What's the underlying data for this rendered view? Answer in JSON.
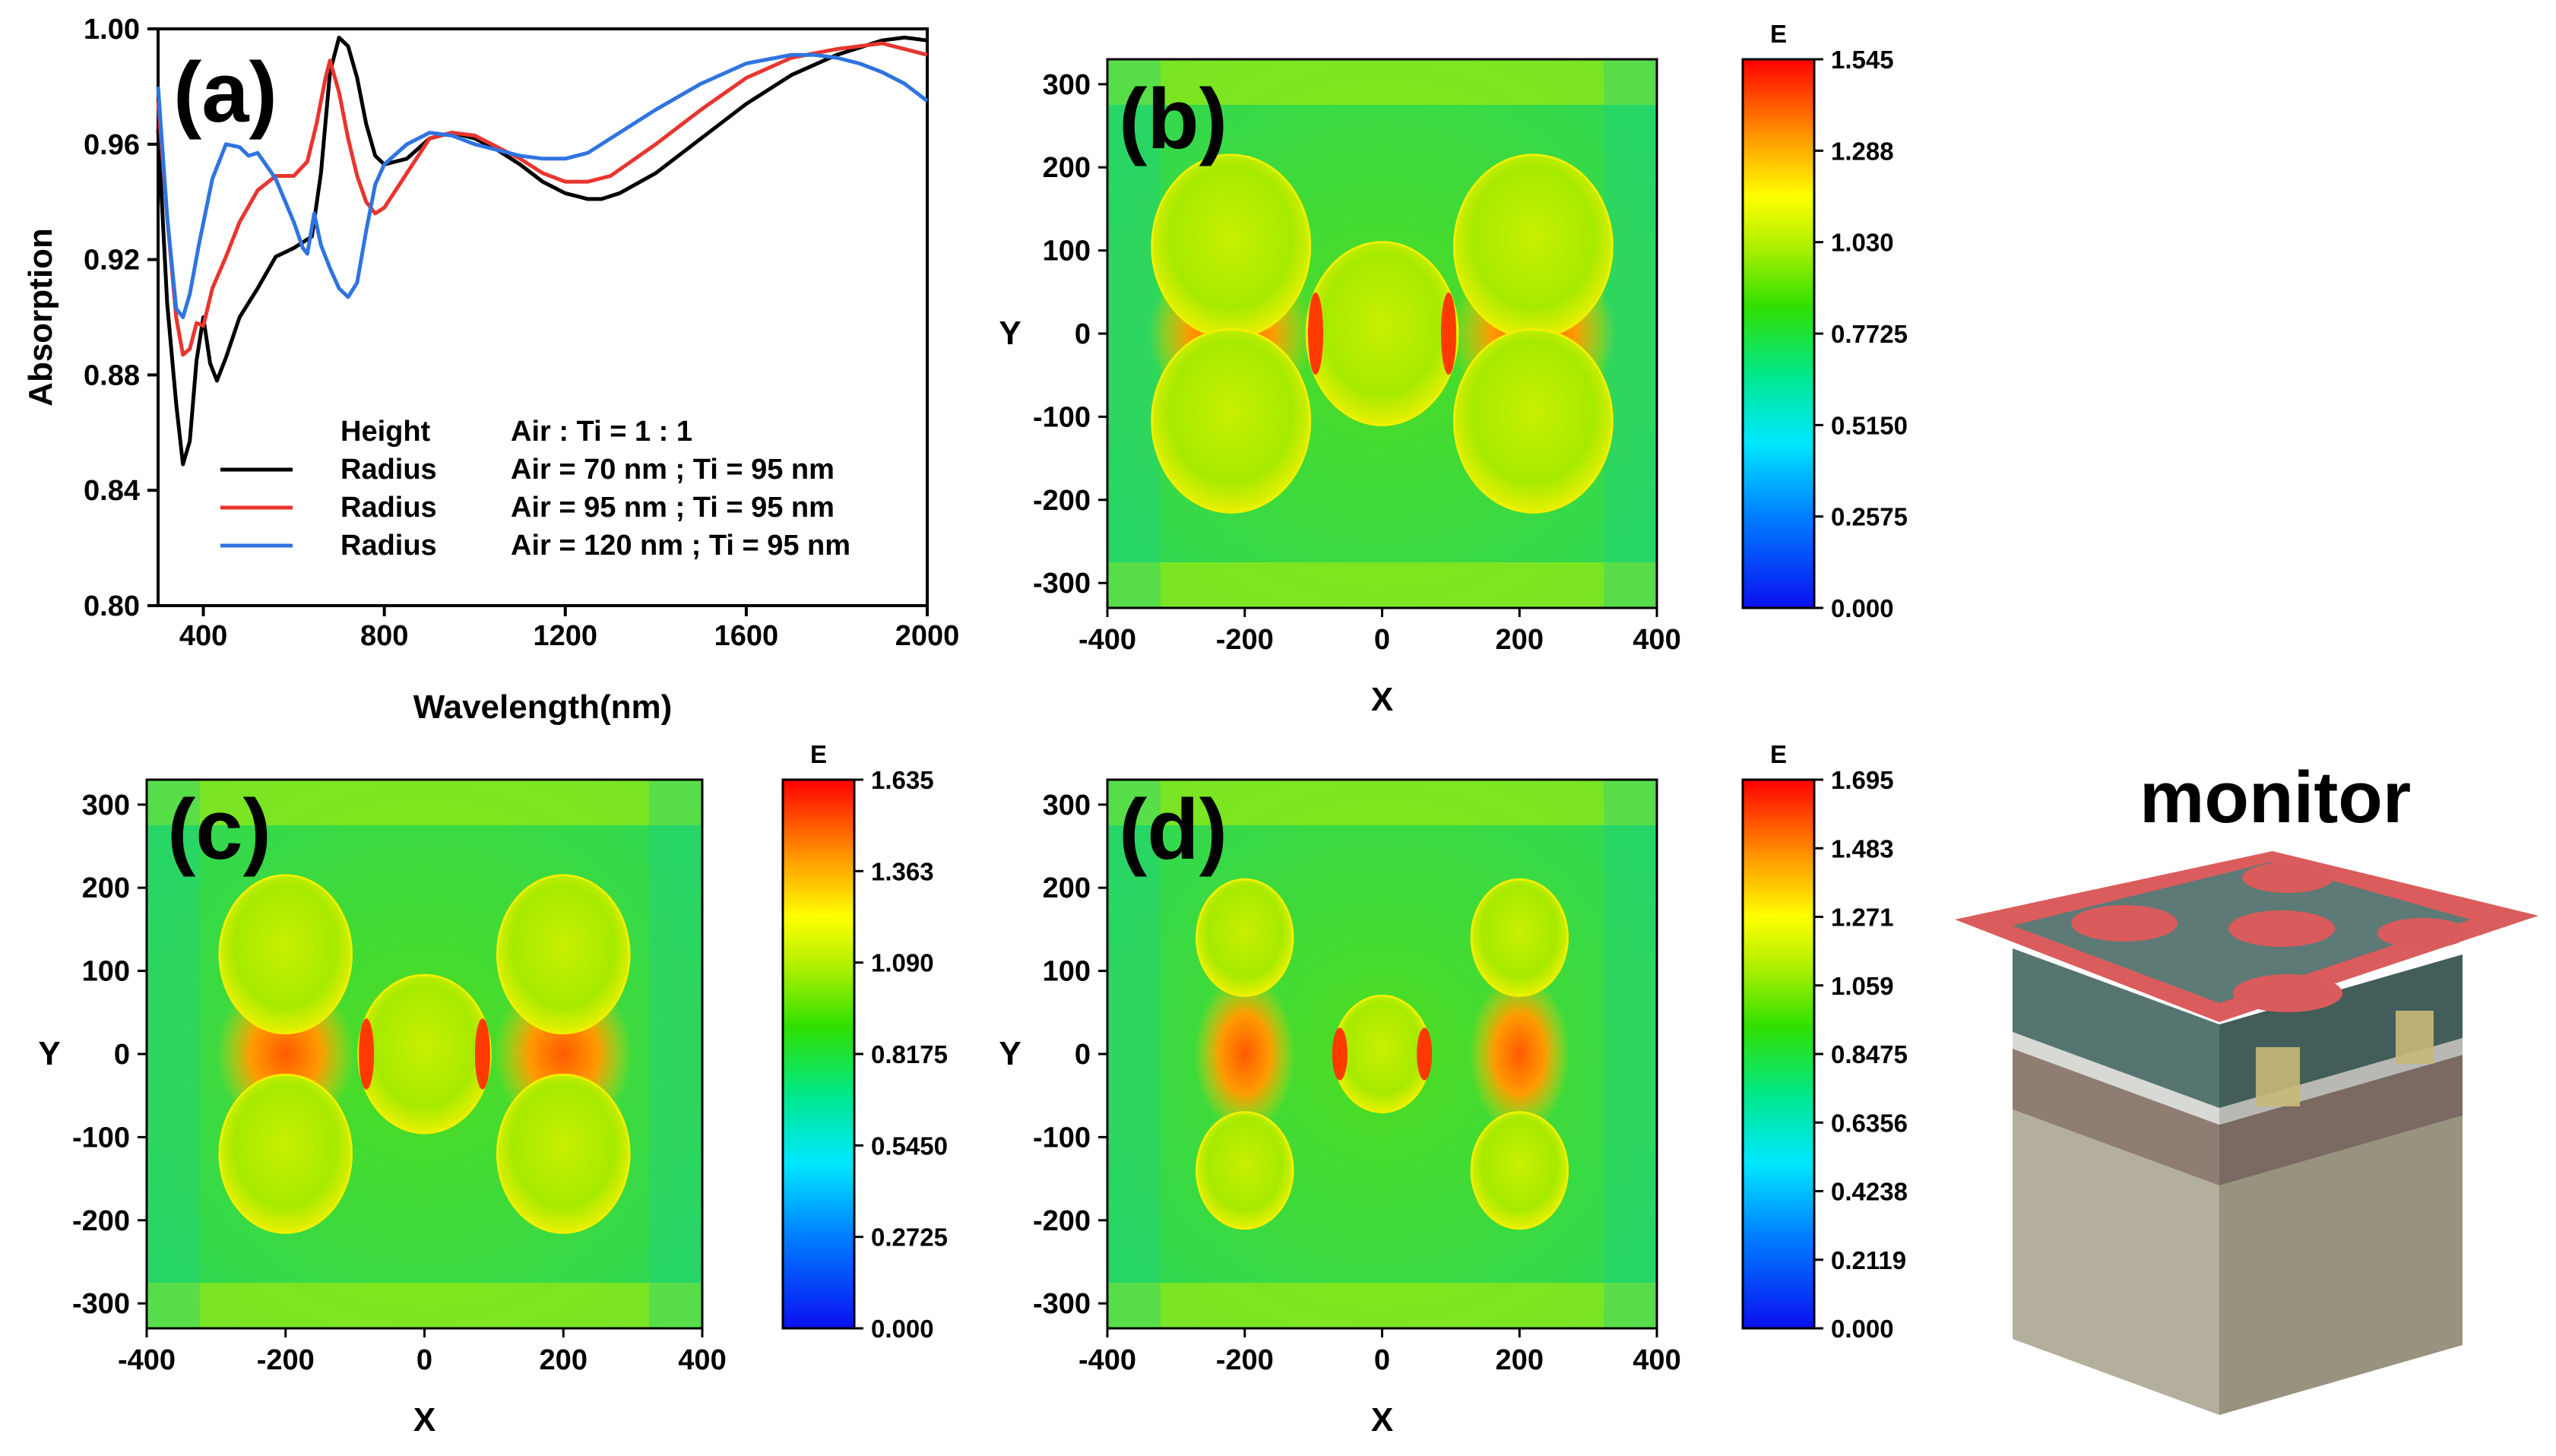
{
  "panel_a": {
    "label": "(a)",
    "chart_data": {
      "type": "line",
      "title": "",
      "xlabel": "Wavelength(nm)",
      "ylabel": "Absorption",
      "xlim": [
        300,
        2000
      ],
      "ylim": [
        0.8,
        1.0
      ],
      "xticks": [
        "400",
        "800",
        "1200",
        "1600",
        "2000"
      ],
      "yticks": [
        "0.80",
        "0.84",
        "0.88",
        "0.92",
        "0.96",
        "1.00"
      ],
      "legend": {
        "header_left": "Height",
        "header_right": "Air : Ti = 1 : 1",
        "position": "bottom-center"
      },
      "series": [
        {
          "name": "Radius",
          "desc": "Air = 70 nm ; Ti = 95 nm",
          "color": "#000000",
          "x": [
            300,
            320,
            340,
            355,
            370,
            385,
            400,
            415,
            430,
            450,
            480,
            520,
            560,
            600,
            640,
            660,
            680,
            700,
            720,
            740,
            760,
            780,
            800,
            850,
            900,
            950,
            1000,
            1050,
            1100,
            1150,
            1200,
            1250,
            1280,
            1320,
            1400,
            1500,
            1600,
            1700,
            1800,
            1900,
            1950,
            2000
          ],
          "y": [
            0.965,
            0.905,
            0.87,
            0.849,
            0.857,
            0.885,
            0.9,
            0.884,
            0.878,
            0.886,
            0.9,
            0.91,
            0.921,
            0.924,
            0.928,
            0.95,
            0.985,
            0.997,
            0.994,
            0.983,
            0.967,
            0.956,
            0.953,
            0.955,
            0.962,
            0.964,
            0.962,
            0.958,
            0.953,
            0.947,
            0.943,
            0.941,
            0.941,
            0.943,
            0.95,
            0.962,
            0.974,
            0.984,
            0.991,
            0.996,
            0.997,
            0.996
          ]
        },
        {
          "name": "Radius",
          "desc": "Air = 95 nm ; Ti = 95 nm",
          "color": "#e8352e",
          "x": [
            300,
            320,
            340,
            355,
            370,
            385,
            400,
            420,
            450,
            480,
            520,
            560,
            600,
            630,
            650,
            670,
            680,
            700,
            720,
            740,
            760,
            780,
            800,
            850,
            900,
            950,
            1000,
            1050,
            1100,
            1150,
            1200,
            1250,
            1300,
            1400,
            1500,
            1600,
            1700,
            1800,
            1850,
            1900,
            1950,
            2000
          ],
          "y": [
            0.975,
            0.935,
            0.9,
            0.887,
            0.889,
            0.898,
            0.897,
            0.91,
            0.921,
            0.933,
            0.944,
            0.949,
            0.949,
            0.954,
            0.967,
            0.983,
            0.989,
            0.978,
            0.962,
            0.949,
            0.94,
            0.936,
            0.938,
            0.95,
            0.962,
            0.964,
            0.963,
            0.959,
            0.955,
            0.95,
            0.947,
            0.947,
            0.949,
            0.96,
            0.972,
            0.983,
            0.99,
            0.993,
            0.994,
            0.995,
            0.993,
            0.991
          ]
        },
        {
          "name": "Radius",
          "desc": "Air = 120 nm ; Ti = 95 nm",
          "color": "#2f74e0",
          "x": [
            300,
            320,
            340,
            355,
            370,
            390,
            420,
            450,
            480,
            500,
            520,
            560,
            600,
            620,
            630,
            645,
            660,
            680,
            700,
            720,
            740,
            760,
            780,
            800,
            850,
            900,
            950,
            1000,
            1050,
            1100,
            1150,
            1200,
            1250,
            1300,
            1400,
            1500,
            1600,
            1700,
            1750,
            1800,
            1850,
            1900,
            1950,
            2000
          ],
          "y": [
            0.98,
            0.935,
            0.903,
            0.9,
            0.908,
            0.925,
            0.948,
            0.96,
            0.959,
            0.956,
            0.957,
            0.948,
            0.933,
            0.924,
            0.922,
            0.936,
            0.925,
            0.917,
            0.91,
            0.907,
            0.912,
            0.93,
            0.946,
            0.953,
            0.96,
            0.964,
            0.963,
            0.96,
            0.958,
            0.956,
            0.955,
            0.955,
            0.957,
            0.962,
            0.972,
            0.981,
            0.988,
            0.991,
            0.991,
            0.99,
            0.988,
            0.985,
            0.981,
            0.975
          ]
        }
      ]
    }
  },
  "maps": [
    {
      "label": "(b)",
      "chart_data": {
        "type": "heatmap",
        "xlabel": "X",
        "ylabel": "Y",
        "xlim": [
          -400,
          400
        ],
        "ylim": [
          -330,
          330
        ],
        "xticks": [
          "-400",
          "-200",
          "0",
          "200",
          "400"
        ],
        "yticks": [
          "300",
          "200",
          "100",
          "0",
          "-100",
          "-200",
          "-300"
        ],
        "colorbar_title": "E",
        "colorbar_ticks": [
          "1.545",
          "1.288",
          "1.030",
          "0.7725",
          "0.5150",
          "0.2575",
          "0.000"
        ],
        "zlim": [
          0,
          1.545
        ],
        "holes": [
          {
            "cx": -220,
            "cy": 105,
            "rx": 115,
            "ry": 110
          },
          {
            "cx": 220,
            "cy": 105,
            "rx": 115,
            "ry": 110
          },
          {
            "cx": -220,
            "cy": -105,
            "rx": 115,
            "ry": 110
          },
          {
            "cx": 220,
            "cy": -105,
            "rx": 115,
            "ry": 110
          },
          {
            "cx": 0,
            "cy": 0,
            "rx": 110,
            "ry": 110
          }
        ]
      }
    },
    {
      "label": "(c)",
      "chart_data": {
        "type": "heatmap",
        "xlabel": "X",
        "ylabel": "Y",
        "xlim": [
          -400,
          400
        ],
        "ylim": [
          -330,
          330
        ],
        "xticks": [
          "-400",
          "-200",
          "0",
          "200",
          "400"
        ],
        "yticks": [
          "300",
          "200",
          "100",
          "0",
          "-100",
          "-200",
          "-300"
        ],
        "colorbar_title": "E",
        "colorbar_ticks": [
          "1.635",
          "1.363",
          "1.090",
          "0.8175",
          "0.5450",
          "0.2725",
          "0.000"
        ],
        "zlim": [
          0,
          1.635
        ],
        "holes": [
          {
            "cx": -200,
            "cy": 120,
            "rx": 95,
            "ry": 95
          },
          {
            "cx": 200,
            "cy": 120,
            "rx": 95,
            "ry": 95
          },
          {
            "cx": -200,
            "cy": -120,
            "rx": 95,
            "ry": 95
          },
          {
            "cx": 200,
            "cy": -120,
            "rx": 95,
            "ry": 95
          },
          {
            "cx": 0,
            "cy": 0,
            "rx": 95,
            "ry": 95
          }
        ]
      }
    },
    {
      "label": "(d)",
      "chart_data": {
        "type": "heatmap",
        "xlabel": "X",
        "ylabel": "Y",
        "xlim": [
          -400,
          400
        ],
        "ylim": [
          -330,
          330
        ],
        "xticks": [
          "-400",
          "-200",
          "0",
          "200",
          "400"
        ],
        "yticks": [
          "300",
          "200",
          "100",
          "0",
          "-100",
          "-200",
          "-300"
        ],
        "colorbar_title": "E",
        "colorbar_ticks": [
          "1.695",
          "1.483",
          "1.271",
          "1.059",
          "0.8475",
          "0.6356",
          "0.4238",
          "0.2119",
          "0.000"
        ],
        "zlim": [
          0,
          1.695
        ],
        "holes": [
          {
            "cx": -200,
            "cy": 140,
            "rx": 70,
            "ry": 70
          },
          {
            "cx": 200,
            "cy": 140,
            "rx": 70,
            "ry": 70
          },
          {
            "cx": -200,
            "cy": -140,
            "rx": 70,
            "ry": 70
          },
          {
            "cx": 200,
            "cy": -140,
            "rx": 70,
            "ry": 70
          },
          {
            "cx": 0,
            "cy": 0,
            "rx": 70,
            "ry": 70
          }
        ]
      }
    }
  ],
  "structure": {
    "label": "monitor",
    "colors": {
      "monitor": "#d64545",
      "top_layer": "#4f6b66",
      "thin_layer": "#c8c8c4",
      "middle_layer": "#8a7a72",
      "substrate": "#a8a492",
      "pillar": "#c9b877"
    }
  }
}
